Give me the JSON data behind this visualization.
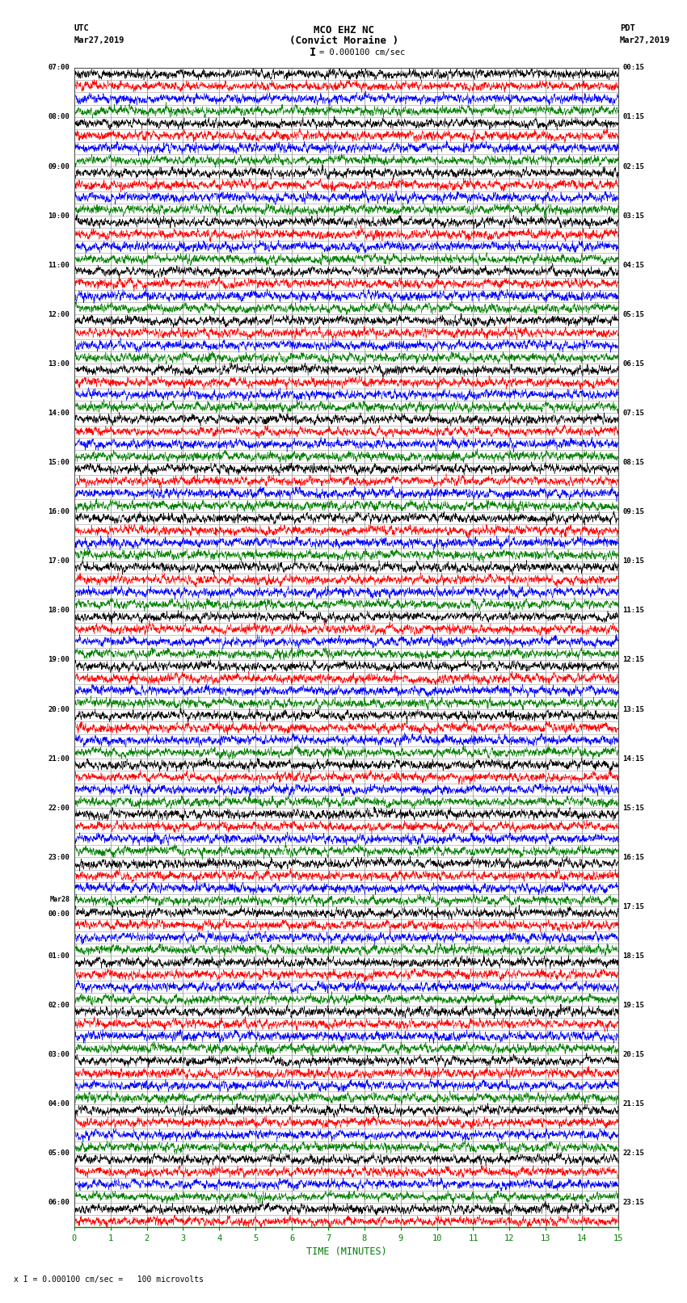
{
  "title_line1": "MCO EHZ NC",
  "title_line2": "(Convict Moraine )",
  "scale_label": "= 0.000100 cm/sec",
  "scale_bracket": "I",
  "bottom_label": "x I = 0.000100 cm/sec =   100 microvolts",
  "utc_label": "UTC",
  "utc_date": "Mar27,2019",
  "pdt_label": "PDT",
  "pdt_date": "Mar27,2019",
  "xlabel": "TIME (MINUTES)",
  "left_times": [
    "07:00",
    "",
    "",
    "",
    "08:00",
    "",
    "",
    "",
    "09:00",
    "",
    "",
    "",
    "10:00",
    "",
    "",
    "",
    "11:00",
    "",
    "",
    "",
    "12:00",
    "",
    "",
    "",
    "13:00",
    "",
    "",
    "",
    "14:00",
    "",
    "",
    "",
    "15:00",
    "",
    "",
    "",
    "16:00",
    "",
    "",
    "",
    "17:00",
    "",
    "",
    "",
    "18:00",
    "",
    "",
    "",
    "19:00",
    "",
    "",
    "",
    "20:00",
    "",
    "",
    "",
    "21:00",
    "",
    "",
    "",
    "22:00",
    "",
    "",
    "",
    "23:00",
    "",
    "",
    "",
    "Mar28",
    "00:00",
    "",
    "",
    "",
    "01:00",
    "",
    "",
    "",
    "02:00",
    "",
    "",
    "",
    "03:00",
    "",
    "",
    "",
    "04:00",
    "",
    "",
    "",
    "05:00",
    "",
    "",
    "",
    "06:00",
    ""
  ],
  "right_times": [
    "00:15",
    "",
    "",
    "",
    "01:15",
    "",
    "",
    "",
    "02:15",
    "",
    "",
    "",
    "03:15",
    "",
    "",
    "",
    "04:15",
    "",
    "",
    "",
    "05:15",
    "",
    "",
    "",
    "06:15",
    "",
    "",
    "",
    "07:15",
    "",
    "",
    "",
    "08:15",
    "",
    "",
    "",
    "09:15",
    "",
    "",
    "",
    "10:15",
    "",
    "",
    "",
    "11:15",
    "",
    "",
    "",
    "12:15",
    "",
    "",
    "",
    "13:15",
    "",
    "",
    "",
    "14:15",
    "",
    "",
    "",
    "15:15",
    "",
    "",
    "",
    "16:15",
    "",
    "",
    "",
    "17:15",
    "",
    "",
    "",
    "18:15",
    "",
    "",
    "",
    "19:15",
    "",
    "",
    "",
    "20:15",
    "",
    "",
    "",
    "21:15",
    "",
    "",
    "",
    "22:15",
    "",
    "",
    "",
    "23:15",
    ""
  ],
  "colors": [
    "black",
    "red",
    "blue",
    "green"
  ],
  "n_rows": 94,
  "n_cols": 3000,
  "bg_color": "white",
  "grid_color": "#999999",
  "noise_base": 0.3,
  "event_amplitudes": [
    0.9,
    0.9,
    0.5,
    0.5,
    0.8,
    0.8,
    0.5,
    0.5,
    0.95,
    0.95,
    0.5,
    0.5,
    0.5,
    0.6,
    0.6,
    0.5,
    0.7,
    0.7,
    0.6,
    0.6,
    0.9,
    0.9,
    0.7,
    0.7,
    0.8,
    0.8,
    0.6,
    0.6,
    0.6,
    0.6,
    0.5,
    0.5,
    0.6,
    0.6,
    0.5,
    0.5,
    0.8,
    0.8,
    0.6,
    0.6,
    0.5,
    0.5,
    0.5,
    0.5,
    0.6,
    0.6,
    0.5,
    0.5,
    0.6,
    0.6,
    0.5,
    0.5,
    0.5,
    0.5,
    0.5,
    0.5,
    0.5,
    0.5,
    0.5,
    0.5,
    0.5,
    0.5,
    0.5,
    0.5,
    0.5,
    0.5,
    0.5,
    0.5,
    0.5,
    0.5,
    0.5,
    0.5,
    0.5,
    0.5,
    0.5,
    0.5,
    0.5,
    0.5,
    0.5,
    0.5,
    0.5,
    0.5,
    0.5,
    0.5,
    0.3,
    0.3,
    0.3,
    0.3,
    0.3,
    0.3,
    0.6,
    0.6
  ]
}
